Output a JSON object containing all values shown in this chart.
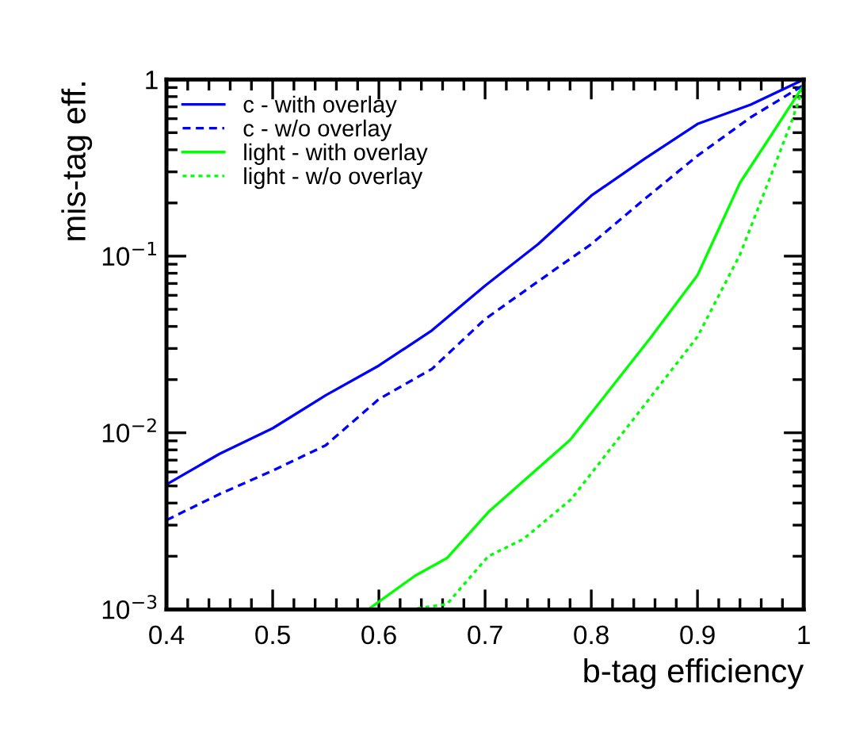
{
  "chart_data": {
    "type": "line",
    "xlabel": "b-tag efficiency",
    "ylabel": "mis-tag eff.",
    "log": "y",
    "grid": false,
    "legend": "top left",
    "xlim": [
      0.4,
      1.0
    ],
    "xticks": [
      0.4,
      0.5,
      0.6,
      0.7,
      0.8,
      0.9,
      {
        "value": 1.0,
        "label": "1"
      }
    ],
    "ylim": [
      0.001,
      1
    ],
    "yticks": [
      {
        "value": 0.001,
        "label": "10$^{−3}$"
      },
      {
        "value": 0.01,
        "label": "10$^{−2}$"
      },
      {
        "value": 0.1,
        "label": "10$^{−1}$"
      },
      {
        "value": 1,
        "label": "1"
      }
    ],
    "series": [
      {
        "name": "c - with overlay",
        "color": "#0000ff",
        "line_style": "solid",
        "x": [
          0.4,
          0.45,
          0.5,
          0.55,
          0.6,
          0.65,
          0.7,
          0.75,
          0.8,
          0.85,
          0.9,
          0.95,
          1.0
        ],
        "values": [
          0.0051,
          0.0076,
          0.0106,
          0.0163,
          0.024,
          0.038,
          0.068,
          0.117,
          0.22,
          0.355,
          0.56,
          0.72,
          1.0
        ]
      },
      {
        "name": "c - w/o overlay",
        "color": "#0000ff",
        "line_style": "dashed",
        "x": [
          0.4,
          0.45,
          0.5,
          0.55,
          0.6,
          0.65,
          0.7,
          0.75,
          0.8,
          0.85,
          0.9,
          0.95,
          1.0
        ],
        "values": [
          0.0032,
          0.0045,
          0.0061,
          0.0085,
          0.0155,
          0.023,
          0.044,
          0.072,
          0.117,
          0.21,
          0.37,
          0.61,
          0.93
        ]
      },
      {
        "name": "light - with overlay",
        "color": "#00ff00",
        "line_style": "solid",
        "x": [
          0.59,
          0.634,
          0.664,
          0.704,
          0.78,
          0.855,
          0.9,
          0.94,
          0.97,
          1.0
        ],
        "values": [
          0.001,
          0.00155,
          0.00195,
          0.0036,
          0.0091,
          0.034,
          0.078,
          0.26,
          0.49,
          0.93
        ]
      },
      {
        "name": "light - w/o overlay",
        "color": "#00ff00",
        "line_style": "dotted",
        "x": [
          0.629,
          0.664,
          0.703,
          0.736,
          0.781,
          0.84,
          0.9,
          0.94,
          0.97,
          0.99,
          1.0
        ],
        "values": [
          0.001,
          0.00107,
          0.002,
          0.0025,
          0.0042,
          0.012,
          0.035,
          0.102,
          0.295,
          0.61,
          0.93
        ]
      }
    ]
  }
}
